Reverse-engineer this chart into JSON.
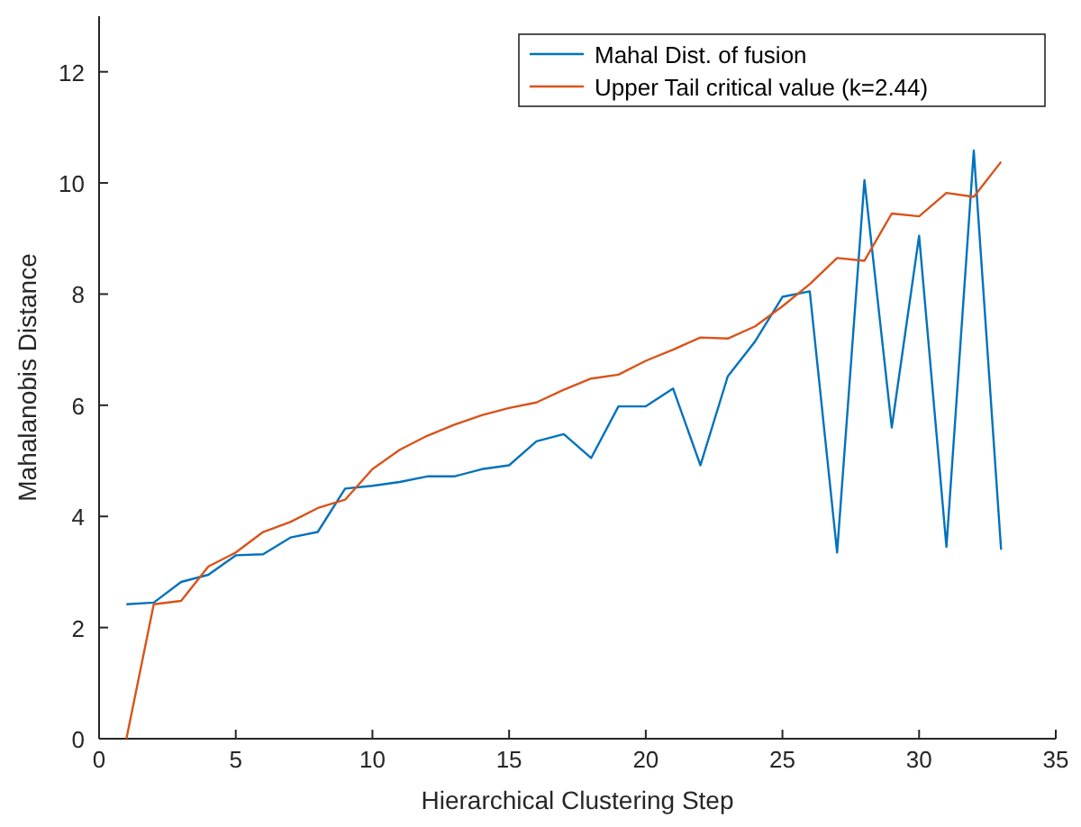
{
  "chart_data": {
    "type": "line",
    "xlabel": "Hierarchical Clustering Step",
    "ylabel": "Mahalanobis Distance",
    "x": [
      1,
      2,
      3,
      4,
      5,
      6,
      7,
      8,
      9,
      10,
      11,
      12,
      13,
      14,
      15,
      16,
      17,
      18,
      19,
      20,
      21,
      22,
      23,
      24,
      25,
      26,
      27,
      28,
      29,
      30,
      31,
      32,
      33
    ],
    "series": [
      {
        "name": "Mahal Dist. of fusion",
        "color": "#0072bd",
        "values": [
          2.42,
          2.45,
          2.82,
          2.95,
          3.3,
          3.32,
          3.62,
          3.72,
          4.5,
          4.55,
          4.62,
          4.72,
          4.72,
          4.85,
          4.92,
          5.35,
          5.48,
          5.05,
          5.98,
          5.98,
          6.3,
          4.92,
          6.52,
          7.15,
          7.95,
          8.05,
          3.35,
          10.05,
          5.6,
          9.05,
          3.45,
          10.58,
          3.4
        ]
      },
      {
        "name": "Upper Tail critical value (k=2.44)",
        "color": "#d95319",
        "values": [
          0,
          2.42,
          2.48,
          3.1,
          3.35,
          3.72,
          3.9,
          4.15,
          4.3,
          4.85,
          5.2,
          5.45,
          5.65,
          5.82,
          5.95,
          6.05,
          6.28,
          6.48,
          6.55,
          6.8,
          7.0,
          7.22,
          7.2,
          7.42,
          7.78,
          8.18,
          8.65,
          8.6,
          9.45,
          9.4,
          9.82,
          9.75,
          10.38
        ]
      }
    ],
    "xlim": [
      0,
      35
    ],
    "xticks": [
      0,
      5,
      10,
      15,
      20,
      25,
      30,
      35
    ],
    "ylim": [
      0,
      13
    ],
    "yticks": [
      0,
      2,
      4,
      6,
      8,
      10,
      12
    ],
    "legend": "top right",
    "grid": false,
    "marker": "none",
    "line_style": "solid"
  }
}
